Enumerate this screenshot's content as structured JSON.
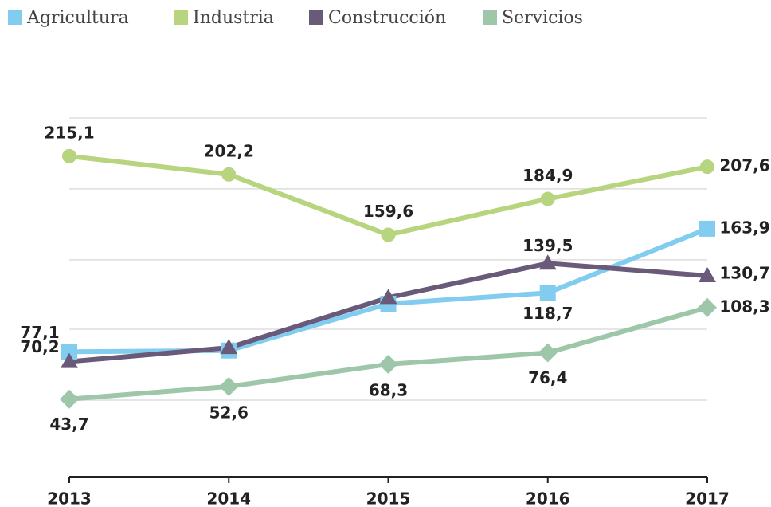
{
  "chart_data": {
    "type": "line",
    "categories": [
      "2013",
      "2014",
      "2015",
      "2016",
      "2017"
    ],
    "series": [
      {
        "name": "Agricultura",
        "color": "#82cdef",
        "marker": "square",
        "values": [
          77.1,
          78,
          111,
          118.7,
          163.9
        ],
        "value_labels": [
          "77,1",
          null,
          null,
          "118,7",
          "163,9"
        ]
      },
      {
        "name": "Industria",
        "color": "#b7d47f",
        "marker": "circle",
        "values": [
          215.1,
          202.2,
          159.6,
          184.9,
          207.6
        ],
        "value_labels": [
          "215,1",
          "202,2",
          "159,6",
          "184,9",
          "207,6"
        ]
      },
      {
        "name": "Construcción",
        "color": "#6a5a7a",
        "marker": "triangle",
        "values": [
          70.2,
          80,
          115.3,
          139.5,
          130.7
        ],
        "value_labels": [
          "70,2",
          null,
          null,
          "139,5",
          "130,7"
        ]
      },
      {
        "name": "Servicios",
        "color": "#9ec7a9",
        "marker": "diamond",
        "values": [
          43.7,
          52.6,
          68.3,
          76.4,
          108.3
        ],
        "value_labels": [
          "43,7",
          "52,6",
          "68,3",
          "76,4",
          "108,3"
        ]
      }
    ],
    "ylim": [
      -11,
      242
    ],
    "yticks": [
      43,
      93,
      142,
      192,
      242
    ],
    "grid": true,
    "legend": "top-left"
  }
}
